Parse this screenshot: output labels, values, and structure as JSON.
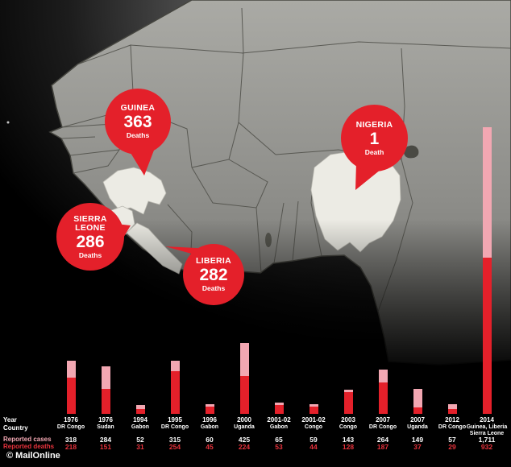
{
  "attribution": "© MailOnline",
  "map": {
    "region": "West Africa",
    "callouts": [
      {
        "country": "GUINEA",
        "value": "363",
        "unit": "Deaths"
      },
      {
        "country": "NIGERIA",
        "value": "1",
        "unit": "Death"
      },
      {
        "country": "SIERRA LEONE",
        "value": "286",
        "unit": "Deaths"
      },
      {
        "country": "LIBERIA",
        "value": "282",
        "unit": "Deaths"
      }
    ]
  },
  "chart_data": {
    "type": "bar",
    "row_labels": {
      "year": "Year",
      "country": "Country",
      "cases": "Reported cases",
      "deaths": "Reported deaths"
    },
    "colors": {
      "cases": "#f2a7b2",
      "deaths": "#e4202a"
    },
    "ymax": 1711,
    "ylim": [
      0,
      1711
    ],
    "legend_position": "left",
    "columns": [
      {
        "year": "1976",
        "country": "DR Congo",
        "cases": 318,
        "deaths": 218,
        "cases_label": "318",
        "deaths_label": "218"
      },
      {
        "year": "1976",
        "country": "Sudan",
        "cases": 284,
        "deaths": 151,
        "cases_label": "284",
        "deaths_label": "151"
      },
      {
        "year": "1994",
        "country": "Gabon",
        "cases": 52,
        "deaths": 31,
        "cases_label": "52",
        "deaths_label": "31"
      },
      {
        "year": "1995",
        "country": "DR Congo",
        "cases": 315,
        "deaths": 254,
        "cases_label": "315",
        "deaths_label": "254"
      },
      {
        "year": "1996",
        "country": "Gabon",
        "cases": 60,
        "deaths": 45,
        "cases_label": "60",
        "deaths_label": "45"
      },
      {
        "year": "2000",
        "country": "Uganda",
        "cases": 425,
        "deaths": 224,
        "cases_label": "425",
        "deaths_label": "224"
      },
      {
        "year": "2001-02",
        "country": "Gabon",
        "cases": 65,
        "deaths": 53,
        "cases_label": "65",
        "deaths_label": "53"
      },
      {
        "year": "2001-02",
        "country": "Congo",
        "cases": 59,
        "deaths": 44,
        "cases_label": "59",
        "deaths_label": "44"
      },
      {
        "year": "2003",
        "country": "Congo",
        "cases": 143,
        "deaths": 128,
        "cases_label": "143",
        "deaths_label": "128"
      },
      {
        "year": "2007",
        "country": "DR Congo",
        "cases": 264,
        "deaths": 187,
        "cases_label": "264",
        "deaths_label": "187"
      },
      {
        "year": "2007",
        "country": "Uganda",
        "cases": 149,
        "deaths": 37,
        "cases_label": "149",
        "deaths_label": "37"
      },
      {
        "year": "2012",
        "country": "DR Congo",
        "cases": 57,
        "deaths": 29,
        "cases_label": "57",
        "deaths_label": "29"
      },
      {
        "year": "2014",
        "country": "Guinea, Liberia Sierra Leone",
        "cases": 1711,
        "deaths": 932,
        "cases_label": "1,711",
        "deaths_label": "932"
      }
    ]
  }
}
